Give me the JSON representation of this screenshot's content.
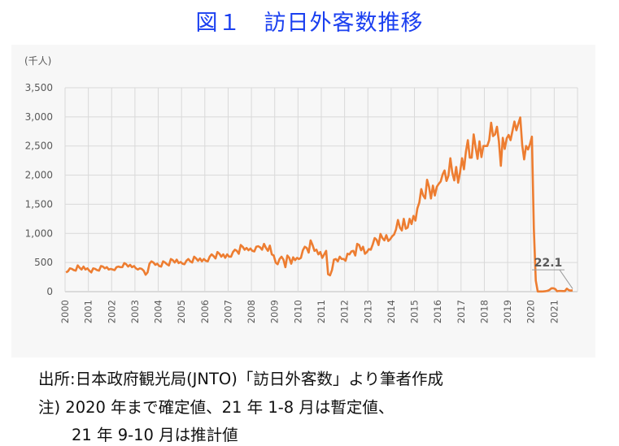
{
  "title": "図１　訪日外客数推移",
  "source": "出所:日本政府観光局(JNTO)「訪日外客数」より筆者作成",
  "note_line1": "注) 2020 年まで確定値、21 年 1-8 月は暫定値、",
  "note_line2": "21 年 9-10 月は推計値",
  "colors": {
    "line": "#ed7d31",
    "title": "#1a3ff0",
    "grid": "#d9d9d9",
    "panel": "#f7f7f7"
  },
  "chart_data": {
    "type": "line",
    "title": "",
    "ylabel": "(千人)",
    "ylim": [
      0,
      3500
    ],
    "yticks": [
      0,
      500,
      1000,
      1500,
      2000,
      2500,
      3000,
      3500
    ],
    "ytick_labels": [
      "0",
      "500",
      "1,000",
      "1,500",
      "2,000",
      "2,500",
      "3,000",
      "3,500"
    ],
    "x_categories": [
      "2000",
      "2001",
      "2002",
      "2003",
      "2004",
      "2005",
      "2006",
      "2007",
      "2008",
      "2009",
      "2010",
      "2011",
      "2012",
      "2013",
      "2014",
      "2015",
      "2016",
      "2017",
      "2018",
      "2019",
      "2020",
      "2021"
    ],
    "grid": "vertical-and-horizontal",
    "annotation": {
      "label": "22.1",
      "month": "2021-10",
      "value": 22.1
    },
    "series": [
      {
        "start": "2000-01",
        "frequency": "monthly",
        "values": [
          330,
          350,
          400,
          390,
          370,
          360,
          450,
          410,
          380,
          430,
          380,
          400,
          360,
          330,
          400,
          390,
          370,
          360,
          440,
          430,
          400,
          420,
          380,
          390,
          380,
          370,
          420,
          430,
          420,
          420,
          490,
          470,
          430,
          460,
          420,
          440,
          400,
          380,
          400,
          390,
          360,
          290,
          330,
          480,
          520,
          500,
          460,
          480,
          440,
          430,
          520,
          500,
          470,
          450,
          560,
          540,
          500,
          550,
          490,
          510,
          480,
          470,
          530,
          560,
          520,
          500,
          600,
          570,
          530,
          570,
          520,
          560,
          530,
          520,
          600,
          640,
          610,
          570,
          680,
          650,
          600,
          640,
          580,
          640,
          600,
          600,
          680,
          720,
          700,
          650,
          800,
          770,
          720,
          750,
          710,
          740,
          700,
          690,
          770,
          780,
          760,
          720,
          820,
          750,
          700,
          790,
          640,
          620,
          500,
          470,
          560,
          600,
          550,
          420,
          620,
          580,
          480,
          590,
          540,
          580,
          560,
          580,
          710,
          770,
          750,
          670,
          880,
          800,
          700,
          720,
          640,
          680,
          580,
          640,
          700,
          300,
          280,
          370,
          550,
          560,
          520,
          600,
          560,
          560,
          530,
          650,
          640,
          690,
          700,
          620,
          820,
          800,
          710,
          770,
          650,
          680,
          730,
          720,
          810,
          920,
          890,
          800,
          990,
          920,
          880,
          970,
          870,
          900,
          950,
          980,
          1070,
          1230,
          1100,
          1050,
          1250,
          1080,
          1100,
          1250,
          1160,
          1300,
          1220,
          1430,
          1530,
          1760,
          1650,
          1600,
          1920,
          1800,
          1600,
          1820,
          1650,
          1800,
          1850,
          1890,
          2010,
          2080,
          1900,
          1990,
          2290,
          2040,
          1910,
          2140,
          1870,
          2050,
          2290,
          2100,
          2400,
          2600,
          2300,
          2300,
          2700,
          2480,
          2280,
          2580,
          2310,
          2500,
          2500,
          2500,
          2600,
          2900,
          2670,
          2700,
          2830,
          2580,
          2160,
          2640,
          2450,
          2630,
          2690,
          2600,
          2760,
          2920,
          2770,
          2880,
          2990,
          2520,
          2270,
          2500,
          2440,
          2530,
          2660,
          1080,
          190,
          3,
          2,
          3,
          4,
          8,
          14,
          28,
          56,
          58,
          46,
          7,
          12,
          11,
          10,
          9,
          51,
          26,
          18,
          22.1
        ]
      }
    ]
  }
}
